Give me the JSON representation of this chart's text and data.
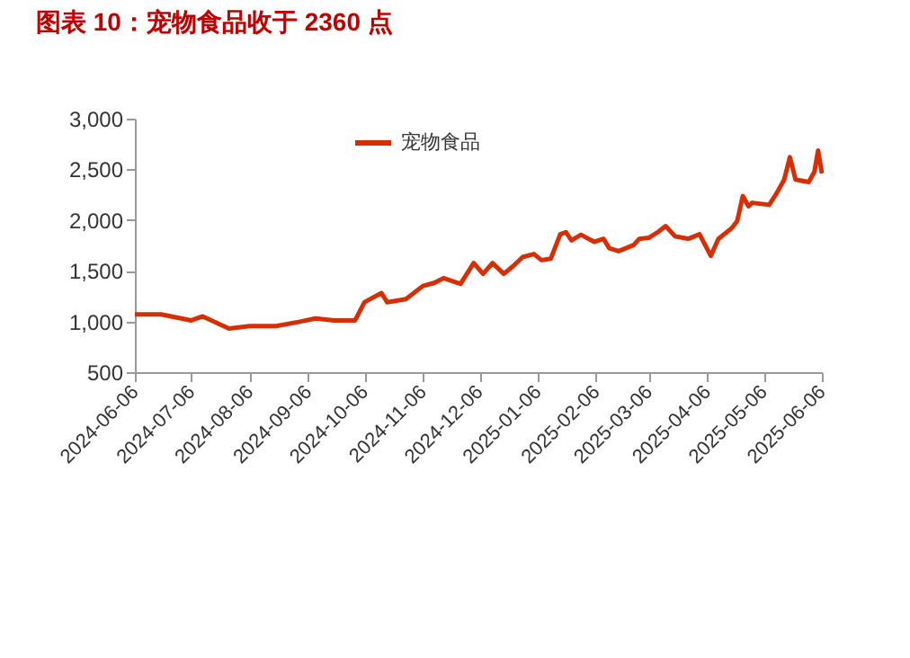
{
  "chart_data": {
    "type": "line",
    "title": "图表 10：宠物食品收于 2360 点",
    "x": [
      "2024-06-06",
      "2024-06-20",
      "2024-07-06",
      "2024-07-12",
      "2024-07-26",
      "2024-08-06",
      "2024-08-20",
      "2024-09-01",
      "2024-09-10",
      "2024-09-20",
      "2024-10-01",
      "2024-10-06",
      "2024-10-15",
      "2024-10-18",
      "2024-10-28",
      "2024-11-06",
      "2024-11-12",
      "2024-11-17",
      "2024-11-26",
      "2024-12-03",
      "2024-12-08",
      "2024-12-13",
      "2024-12-19",
      "2024-12-24",
      "2024-12-29",
      "2025-01-04",
      "2025-01-08",
      "2025-01-13",
      "2025-01-18",
      "2025-01-21",
      "2025-01-24",
      "2025-01-29",
      "2025-02-05",
      "2025-02-10",
      "2025-02-13",
      "2025-02-18",
      "2025-02-26",
      "2025-03-01",
      "2025-03-06",
      "2025-03-11",
      "2025-03-15",
      "2025-03-20",
      "2025-03-27",
      "2025-04-02",
      "2025-04-08",
      "2025-04-12",
      "2025-04-19",
      "2025-04-22",
      "2025-04-25",
      "2025-04-28",
      "2025-04-30",
      "2025-05-09",
      "2025-05-13",
      "2025-05-17",
      "2025-05-20",
      "2025-05-23",
      "2025-05-30",
      "2025-06-02",
      "2025-06-04",
      "2025-06-06"
    ],
    "series": [
      {
        "name": "宠物食品",
        "color": "#d62f06",
        "values": [
          1070,
          1070,
          1010,
          1050,
          930,
          955,
          955,
          995,
          1030,
          1010,
          1010,
          1190,
          1280,
          1190,
          1220,
          1350,
          1380,
          1427,
          1370,
          1576,
          1470,
          1576,
          1470,
          1546,
          1635,
          1665,
          1605,
          1620,
          1860,
          1880,
          1800,
          1855,
          1785,
          1815,
          1723,
          1693,
          1753,
          1815,
          1825,
          1883,
          1940,
          1840,
          1815,
          1860,
          1647,
          1815,
          1918,
          1990,
          2237,
          2136,
          2170,
          2150,
          2265,
          2400,
          2620,
          2400,
          2375,
          2475,
          2686,
          2460
        ]
      }
    ],
    "xlim": [
      "2024-06-06",
      "2025-06-06"
    ],
    "xticks": [
      "2024-06-06",
      "2024-07-06",
      "2024-08-06",
      "2024-09-06",
      "2024-10-06",
      "2024-11-06",
      "2024-12-06",
      "2025-01-06",
      "2025-02-06",
      "2025-03-06",
      "2025-04-06",
      "2025-05-06",
      "2025-06-06"
    ],
    "ylim": [
      500,
      3000
    ],
    "yticks": [
      {
        "value": 500,
        "label": "500"
      },
      {
        "value": 1000,
        "label": "1,000"
      },
      {
        "value": 1500,
        "label": "1,500"
      },
      {
        "value": 2000,
        "label": "2,000"
      },
      {
        "value": 2500,
        "label": "2,500"
      },
      {
        "value": 3000,
        "label": "3,000"
      }
    ],
    "grid": false,
    "legend": "top"
  }
}
